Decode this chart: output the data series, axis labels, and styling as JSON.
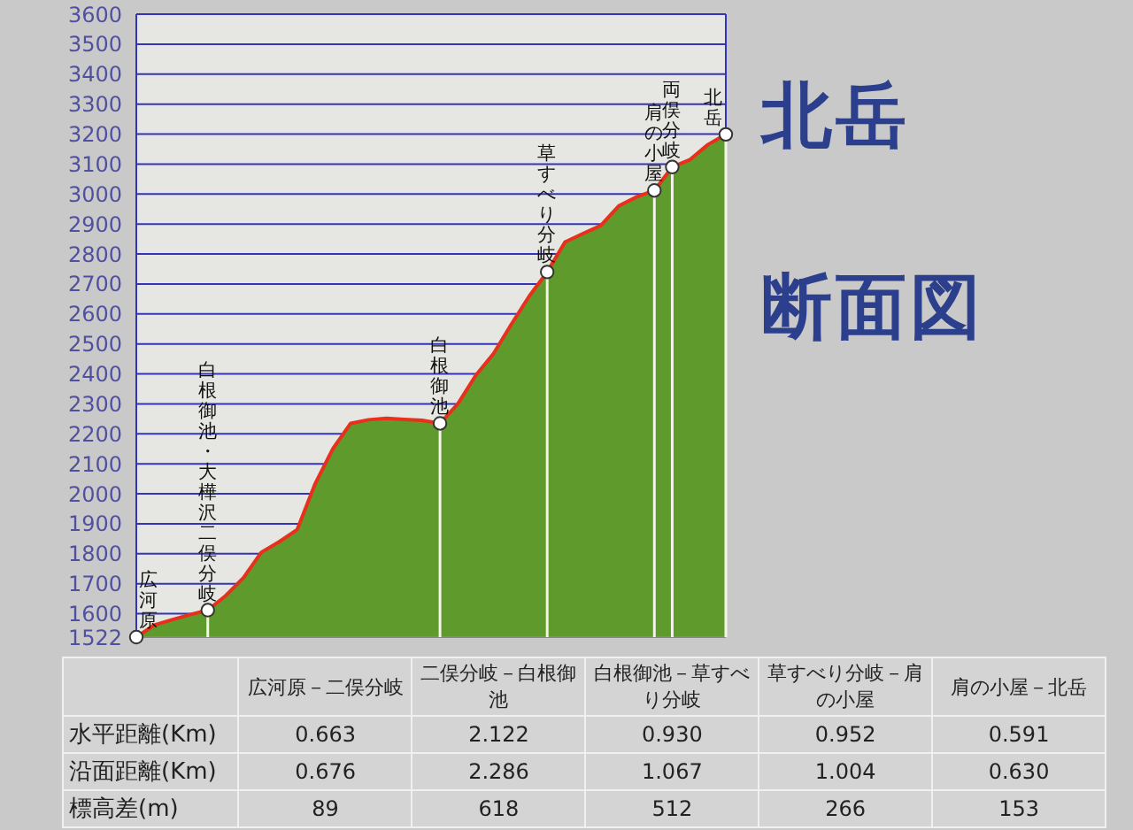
{
  "chart_data": {
    "type": "area",
    "title": "北岳",
    "subtitle": "断面図",
    "categories": [
      null,
      null,
      null,
      null,
      null,
      null,
      null,
      null,
      null,
      null,
      null,
      null,
      null,
      null,
      null,
      null,
      null,
      null,
      null,
      null,
      null,
      null,
      null,
      null,
      null,
      null,
      null,
      null,
      null,
      null,
      null,
      null,
      null,
      null
    ],
    "series": [
      {
        "color": "#5e9a2c",
        "values": [
          1522,
          1562,
          1580,
          1597,
          1612,
          1660,
          1720,
          1805,
          1840,
          1880,
          2032,
          2150,
          2235,
          2247,
          2252,
          2248,
          2245,
          2235,
          2300,
          2395,
          2468,
          2566,
          2660,
          2740,
          2840,
          2868,
          2895,
          2960,
          2990,
          3012,
          3090,
          3115,
          3165,
          3199
        ]
      },
      {
        "type": "scatter",
        "color": "#ffffff",
        "marker": "circle",
        "values": [
          1522,
          null,
          null,
          null,
          1612,
          null,
          null,
          null,
          null,
          null,
          null,
          null,
          null,
          null,
          null,
          null,
          null,
          2235,
          null,
          null,
          null,
          null,
          null,
          2740,
          null,
          null,
          null,
          null,
          null,
          3012,
          3090,
          null,
          null,
          3199
        ],
        "value_labels": [
          "広河原",
          null,
          null,
          null,
          "白根御池・大樺沢二俣分岐",
          null,
          null,
          null,
          null,
          null,
          null,
          null,
          null,
          null,
          null,
          null,
          null,
          "白根御池",
          null,
          null,
          null,
          null,
          null,
          "草すべり分岐",
          null,
          null,
          null,
          null,
          null,
          "肩の小屋",
          "両俣分岐",
          null,
          null,
          "北岳"
        ]
      }
    ],
    "ylim": [
      1522,
      3600
    ],
    "yticks": [
      1522,
      1600,
      1700,
      1800,
      1900,
      2000,
      2100,
      2200,
      2300,
      2400,
      2500,
      2600,
      2700,
      2800,
      2900,
      3000,
      3100,
      3200,
      3300,
      3400,
      3500,
      3600
    ],
    "tick_labels": "y",
    "grid": true,
    "annotations": [
      "広河原－二俣分岐",
      "二俣分岐－白根御池",
      "白根御池－草すべり分岐",
      "草すべり分岐－肩の小屋",
      "肩の小屋－北岳",
      "水平距離(Km)",
      "0.663",
      "2.122",
      "0.930",
      "0.952",
      "0.591",
      "沿面距離(Km)",
      "0.676",
      "2.286",
      "1.067",
      "1.004",
      "0.630",
      "標高差(m)",
      "89",
      "618",
      "512",
      "266",
      "153"
    ]
  }
}
